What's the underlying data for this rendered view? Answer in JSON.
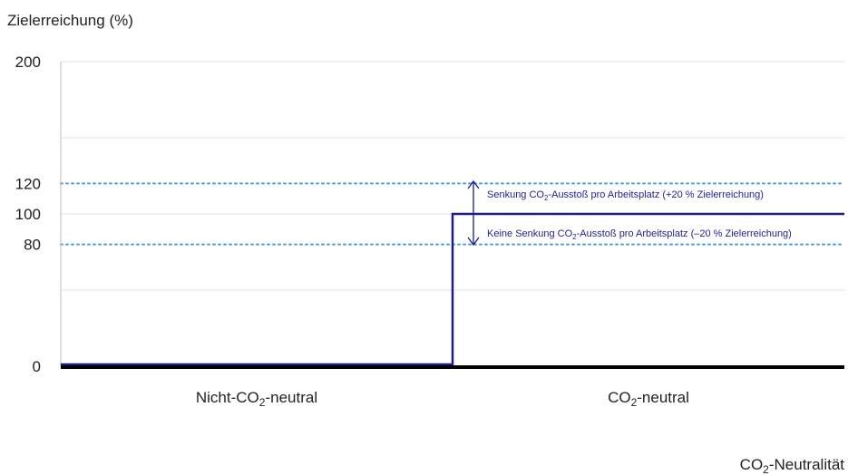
{
  "chart_data": {
    "type": "line",
    "step": true,
    "title": "",
    "ylabel": "Zielerreichung (%)",
    "xlabel_main": "CO",
    "xlabel_sub": "2",
    "xlabel_rest": "-Neutralität",
    "ylim": [
      0,
      200
    ],
    "yticks": [
      0,
      80,
      100,
      120,
      200
    ],
    "gridlines": [
      0,
      50,
      100,
      150,
      200
    ],
    "categories": [
      {
        "main": "Nicht-CO",
        "sub": "2",
        "rest": "-neutral"
      },
      {
        "main": "CO",
        "sub": "2",
        "rest": "-neutral"
      }
    ],
    "series": [
      {
        "values": [
          0,
          100
        ],
        "color": "#1c1c8c"
      }
    ],
    "reference_lines": [
      {
        "y": 120,
        "color": "#4a9ee0",
        "style": "dotted"
      },
      {
        "y": 80,
        "color": "#4a9ee0",
        "style": "dotted"
      }
    ],
    "annotations": [
      {
        "pre": "Senkung CO",
        "sub": "2",
        "post": "-Ausstoß pro Arbeitsplatz (+20 % Zielerreichung)"
      },
      {
        "pre": "Keine Senkung CO",
        "sub": "2",
        "post": "-Ausstoß pro Arbeitsplatz (–20 % Zielerreichung)"
      }
    ],
    "colors": {
      "series": "#1c1c8c",
      "reference": "#4a9ee0",
      "grid": "#e3e3e3",
      "axis": "#000000"
    }
  }
}
